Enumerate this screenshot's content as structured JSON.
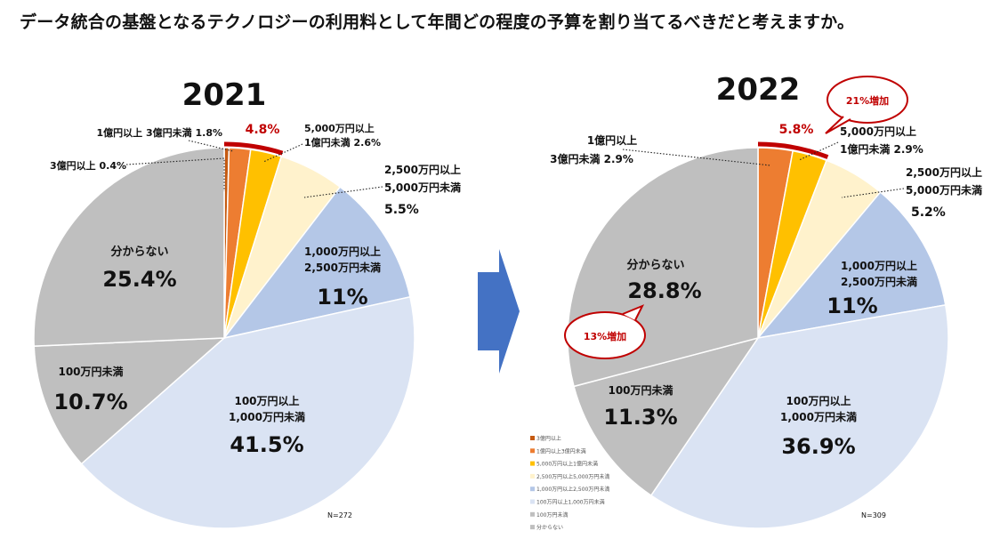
{
  "title": "データ統合の基盤となるテクノロジーの利用料として年間どの程度の予算を割り当てるべきだと考えますか。",
  "colors": {
    "c3oku": "#c55a11",
    "c1oku": "#ed7d31",
    "c5000": "#ffc000",
    "c2500": "#fff2cc",
    "c1000": "#b4c7e7",
    "c100": "#dae3f3",
    "cunknown": "#bfbfbf",
    "accent_red": "#c00000",
    "arrow": "#4472c4"
  },
  "chart_data": [
    {
      "type": "pie",
      "title": "2021",
      "note": "N=272",
      "categories": [
        "3億円以上",
        "1億円以上3億円未満",
        "5,000万円以上1億円未満",
        "2,500万円以上5,000万円未満",
        "1,000万円以上2,500万円未満",
        "100万円以上1,000万円未満",
        "100万円未満",
        "分からない"
      ],
      "values": [
        0.4,
        1.8,
        2.6,
        5.5,
        11,
        41.5,
        10.7,
        25.4
      ],
      "labels": [
        {
          "line1": "3億円以上 0.4%",
          "line2": "",
          "value": ""
        },
        {
          "line1": "1億円以上 3億円未満 1.8%",
          "line2": "",
          "value": ""
        },
        {
          "line1": "5,000万円以上",
          "line2": "1億円未満 2.6%",
          "value": ""
        },
        {
          "line1": "2,500万円以上",
          "line2": "5,000万円未満",
          "value": "5.5%"
        },
        {
          "line1": "1,000万円以上",
          "line2": "2,500万円未満",
          "value": "11%"
        },
        {
          "line1": "100万円以上",
          "line2": "1,000万円未満",
          "value": "41.5%"
        },
        {
          "line1": "100万円未満",
          "line2": "",
          "value": "10.7%"
        },
        {
          "line1": "分からない",
          "line2": "",
          "value": "25.4%"
        }
      ],
      "highlight": {
        "text": "4.8%"
      }
    },
    {
      "type": "pie",
      "title": "2022",
      "note": "N=309",
      "categories": [
        "3億円以上",
        "1億円以上3億円未満",
        "5,000万円以上1億円未満",
        "2,500万円以上5,000万円未満",
        "1,000万円以上2,500万円未満",
        "100万円以上1,000万円未満",
        "100万円未満",
        "分からない"
      ],
      "values": [
        0,
        2.9,
        2.9,
        5.2,
        11,
        36.9,
        11.3,
        28.8
      ],
      "labels": [
        {
          "line1": "",
          "line2": "",
          "value": ""
        },
        {
          "line1": "1億円以上",
          "line2": "3億円未満 2.9%",
          "value": ""
        },
        {
          "line1": "5,000万円以上",
          "line2": "1億円未満 2.9%",
          "value": ""
        },
        {
          "line1": "2,500万円以上",
          "line2": "5,000万円未満",
          "value": "5.2%"
        },
        {
          "line1": "1,000万円以上",
          "line2": "2,500万円未満",
          "value": "11%"
        },
        {
          "line1": "100万円以上",
          "line2": "1,000万円未満",
          "value": "36.9%"
        },
        {
          "line1": "100万円未満",
          "line2": "",
          "value": "11.3%"
        },
        {
          "line1": "分からない",
          "line2": "",
          "value": "28.8%"
        }
      ],
      "highlight": {
        "text": "5.8%"
      },
      "callouts": [
        "21%増加",
        "13%増加"
      ],
      "legend": [
        "3億円以上",
        "1億円以上3億円未満",
        "5,000万円以上1億円未満",
        "2,500万円以上5,000万円未満",
        "1,000万円以上2,500万円未満",
        "100万円以上1,000万円未満",
        "100万円未満",
        "分からない"
      ]
    }
  ]
}
